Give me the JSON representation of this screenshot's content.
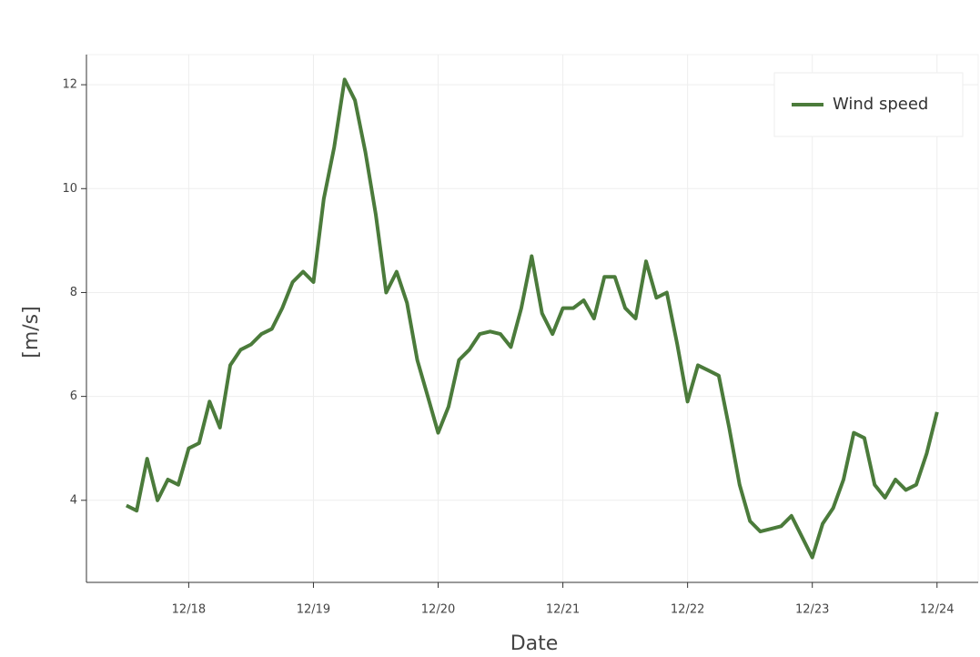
{
  "chart_data": {
    "type": "line",
    "x_label": "Date",
    "y_label": "[m/s]",
    "x": [
      17.5,
      17.583,
      17.667,
      17.75,
      17.833,
      17.917,
      18,
      18.083,
      18.167,
      18.25,
      18.333,
      18.417,
      18.5,
      18.583,
      18.667,
      18.75,
      18.833,
      18.917,
      19,
      19.083,
      19.167,
      19.25,
      19.333,
      19.417,
      19.5,
      19.583,
      19.667,
      19.75,
      19.833,
      19.917,
      20,
      20.083,
      20.167,
      20.25,
      20.333,
      20.417,
      20.5,
      20.583,
      20.667,
      20.75,
      20.833,
      20.917,
      21,
      21.083,
      21.167,
      21.25,
      21.333,
      21.417,
      21.5,
      21.583,
      21.667,
      21.75,
      21.833,
      21.917,
      22,
      22.083,
      22.167,
      22.25,
      22.333,
      22.417,
      22.5,
      22.583,
      22.667,
      22.75,
      22.833,
      22.917,
      23,
      23.083,
      23.167,
      23.25,
      23.333,
      23.417,
      23.5,
      23.583,
      23.667,
      23.75,
      23.833,
      23.917,
      24
    ],
    "series": [
      {
        "name": "Wind speed",
        "color": "#4b7b3b",
        "values": [
          3.9,
          3.8,
          4.8,
          4.0,
          4.4,
          4.3,
          5.0,
          5.1,
          5.9,
          5.4,
          6.6,
          6.9,
          7.0,
          7.2,
          7.3,
          7.7,
          8.2,
          8.4,
          8.2,
          9.8,
          10.8,
          12.1,
          11.7,
          10.7,
          9.5,
          8.0,
          8.4,
          7.8,
          6.7,
          6.0,
          5.3,
          5.8,
          6.7,
          6.9,
          7.2,
          7.25,
          7.2,
          6.95,
          7.7,
          8.7,
          7.6,
          7.2,
          7.7,
          7.7,
          7.85,
          7.5,
          8.3,
          8.3,
          7.7,
          7.5,
          8.6,
          7.9,
          8.0,
          7.0,
          5.9,
          6.6,
          6.5,
          6.4,
          5.4,
          4.3,
          3.6,
          3.4,
          3.45,
          3.5,
          3.7,
          3.3,
          2.9,
          3.55,
          3.85,
          4.4,
          5.3,
          5.2,
          4.3,
          4.05,
          4.4,
          4.2,
          4.3,
          4.9,
          5.7
        ]
      }
    ],
    "xlim": [
      17.18,
      24.33
    ],
    "ylim": [
      2.42,
      12.58
    ],
    "xticks": [
      {
        "value": 18,
        "label": "12/18"
      },
      {
        "value": 19,
        "label": "12/19"
      },
      {
        "value": 20,
        "label": "12/20"
      },
      {
        "value": 21,
        "label": "12/21"
      },
      {
        "value": 22,
        "label": "12/22"
      },
      {
        "value": 23,
        "label": "12/23"
      },
      {
        "value": 24,
        "label": "12/24"
      }
    ],
    "yticks": [
      4,
      6,
      8,
      10,
      12
    ],
    "grid": true,
    "legend": "top-right"
  }
}
